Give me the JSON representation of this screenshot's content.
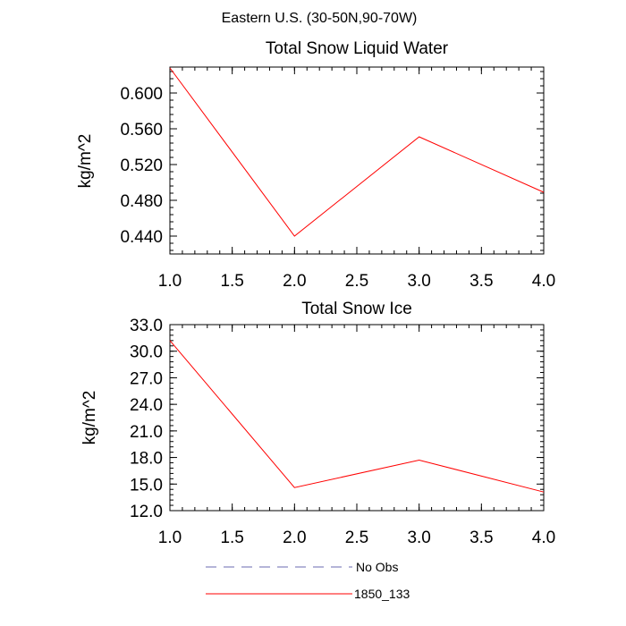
{
  "figure": {
    "title": "Eastern U.S. (30-50N,90-70W)"
  },
  "chart_data": [
    {
      "type": "line",
      "title": "Total Snow Liquid Water",
      "xlabel": "",
      "ylabel": "kg/m^2",
      "xlim": [
        1.0,
        4.0
      ],
      "ylim": [
        0.42,
        0.629
      ],
      "xticks": [
        1.0,
        1.5,
        2.0,
        2.5,
        3.0,
        3.5,
        4.0
      ],
      "xtick_labels": [
        "1.0",
        "1.5",
        "2.0",
        "2.5",
        "3.0",
        "3.5",
        "4.0"
      ],
      "yticks": [
        0.44,
        0.48,
        0.52,
        0.56,
        0.6
      ],
      "ytick_labels": [
        "0.440",
        "0.480",
        "0.520",
        "0.560",
        "0.600"
      ],
      "series": [
        {
          "name": "1850_133",
          "color": "#ff0000",
          "x": [
            1.0,
            2.0,
            3.0,
            4.0
          ],
          "values": [
            0.628,
            0.44,
            0.551,
            0.489
          ]
        }
      ]
    },
    {
      "type": "line",
      "title": "Total Snow Ice",
      "xlabel": "",
      "ylabel": "kg/m^2",
      "xlim": [
        1.0,
        4.0
      ],
      "ylim": [
        12.0,
        33.0
      ],
      "xticks": [
        1.0,
        1.5,
        2.0,
        2.5,
        3.0,
        3.5,
        4.0
      ],
      "xtick_labels": [
        "1.0",
        "1.5",
        "2.0",
        "2.5",
        "3.0",
        "3.5",
        "4.0"
      ],
      "yticks": [
        12,
        15,
        18,
        21,
        24,
        27,
        30,
        33
      ],
      "ytick_labels": [
        "12.0",
        "15.0",
        "18.0",
        "21.0",
        "24.0",
        "27.0",
        "30.0",
        "33.0"
      ],
      "series": [
        {
          "name": "1850_133",
          "color": "#ff0000",
          "x": [
            1.0,
            2.0,
            3.0,
            4.0
          ],
          "values": [
            31.2,
            14.6,
            17.7,
            14.1
          ]
        }
      ]
    }
  ],
  "legend": {
    "position": "bottom",
    "entries": [
      {
        "label": "No Obs",
        "color": "#6b6bb0",
        "style": "dashed"
      },
      {
        "label": "1850_133",
        "color": "#ff0000",
        "style": "solid"
      }
    ]
  }
}
